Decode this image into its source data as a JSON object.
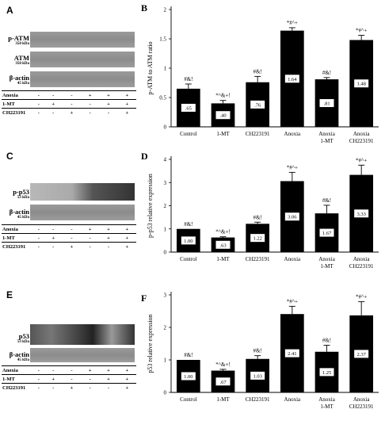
{
  "figure": {
    "panels": [
      {
        "id": "A",
        "letter": "A",
        "rows": [
          {
            "label": "p-ATM",
            "mw": "350 kDa"
          },
          {
            "label": "ATM",
            "mw": "350 kDa"
          },
          {
            "label": "β-actin",
            "mw": "45 kDa"
          }
        ],
        "treatments": [
          {
            "label": "Anoxia",
            "signs": [
              "-",
              "-",
              "-",
              "+",
              "+",
              "+"
            ]
          },
          {
            "label": "1-MT",
            "signs": [
              "-",
              "+",
              "-",
              "-",
              "+",
              "+"
            ]
          },
          {
            "label": "CH223191",
            "signs": [
              "-",
              "-",
              "+",
              "-",
              "-",
              "+"
            ]
          }
        ]
      },
      {
        "id": "C",
        "letter": "C",
        "rows": [
          {
            "label": "p-p53",
            "mw": "53 kDa"
          },
          {
            "label": "β-actin",
            "mw": "45 kDa"
          }
        ],
        "treatments": [
          {
            "label": "Anoxia",
            "signs": [
              "-",
              "-",
              "-",
              "+",
              "+",
              "+"
            ]
          },
          {
            "label": "1-MT",
            "signs": [
              "-",
              "+",
              "-",
              "-",
              "+",
              "+"
            ]
          },
          {
            "label": "CH223191",
            "signs": [
              "-",
              "-",
              "+",
              "-",
              "-",
              "+"
            ]
          }
        ]
      },
      {
        "id": "E",
        "letter": "E",
        "rows": [
          {
            "label": "p53",
            "mw": "53 kDa"
          },
          {
            "label": "β-actin",
            "mw": "45 kDa"
          }
        ],
        "treatments": [
          {
            "label": "Anoxia",
            "signs": [
              "-",
              "-",
              "-",
              "+",
              "+",
              "+"
            ]
          },
          {
            "label": "1-MT",
            "signs": [
              "-",
              "+",
              "-",
              "-",
              "+",
              "+"
            ]
          },
          {
            "label": "CH223191",
            "signs": [
              "-",
              "-",
              "+",
              "-",
              "-",
              "+"
            ]
          }
        ]
      }
    ]
  },
  "chart_data": [
    {
      "letter": "B",
      "type": "bar",
      "categories": [
        "Control",
        "1-MT",
        "CH223191",
        "Anoxia",
        "Anoxia\n1-MT",
        "Anoxia\nCH223191"
      ],
      "values": [
        0.65,
        0.4,
        0.76,
        1.64,
        0.81,
        1.48
      ],
      "value_labels": [
        ".65",
        ".40",
        ".76",
        "1.64",
        ".81",
        "1.48"
      ],
      "errors": [
        0.08,
        0.05,
        0.1,
        0.05,
        0.03,
        0.08
      ],
      "annotations": [
        "#&!",
        "*^&+!",
        "#&!",
        "*#^+",
        "#&!",
        "*#^+"
      ],
      "ylabel": "p-ATM to ATM ratio",
      "ylim": [
        0,
        2
      ],
      "yticks": [
        0,
        0.5,
        1,
        1.5,
        2
      ],
      "ytick_labels": [
        "0",
        "0.5",
        "1",
        "1.5",
        "2"
      ]
    },
    {
      "letter": "D",
      "type": "bar",
      "categories": [
        "Control",
        "1-MT",
        "CH223191",
        "Anoxia",
        "Anoxia\n1-MT",
        "Anoxia\nCH223191"
      ],
      "values": [
        1.0,
        0.63,
        1.22,
        3.06,
        1.67,
        3.33
      ],
      "value_labels": [
        "1.00",
        ".63",
        "1.22",
        "3.06",
        "1.67",
        "3.33"
      ],
      "errors": [
        0.0,
        0.03,
        0.07,
        0.38,
        0.35,
        0.42
      ],
      "annotations": [
        "#&!",
        "*^&+!",
        "#&!",
        "*#^+",
        "#&!",
        "*#^+"
      ],
      "ylabel": "p-p53 relative expression",
      "ylim": [
        0,
        4
      ],
      "yticks": [
        0,
        1,
        2,
        3,
        4
      ],
      "ytick_labels": [
        "0",
        "1",
        "2",
        "3",
        "4"
      ]
    },
    {
      "letter": "F",
      "type": "bar",
      "categories": [
        "Control",
        "1-MT",
        "CH223191",
        "Anoxia",
        "Anoxia\n1-MT",
        "Anoxia\nCH223191"
      ],
      "values": [
        1.0,
        0.67,
        1.03,
        2.41,
        1.25,
        2.37
      ],
      "value_labels": [
        "1.00",
        ".67",
        "1.03",
        "2.41",
        "1.25",
        "2.37"
      ],
      "errors": [
        0.0,
        0.04,
        0.1,
        0.24,
        0.2,
        0.42
      ],
      "annotations": [
        "#&!",
        "*^&+!",
        "#&!",
        "*#^+",
        "#&!",
        "*#^+"
      ],
      "ylabel": "p53 relative expression",
      "ylim": [
        0,
        3
      ],
      "yticks": [
        0,
        1,
        2,
        3
      ],
      "ytick_labels": [
        "0",
        "1",
        "2",
        "3"
      ]
    }
  ]
}
